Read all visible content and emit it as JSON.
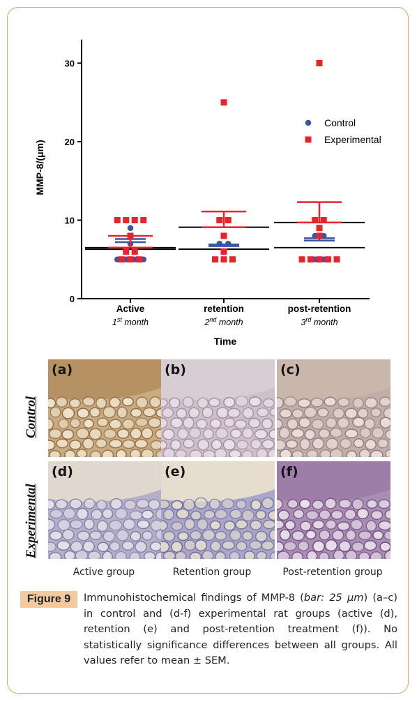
{
  "chart_data": {
    "type": "scatter",
    "ylabel": "MMP-8/(μm)",
    "xlabel": "Time",
    "ylim": [
      0,
      33
    ],
    "yticks": [
      0,
      10,
      20,
      30
    ],
    "categories": [
      {
        "name": "Active",
        "sub": "1",
        "sup": "st",
        "suffix": " month"
      },
      {
        "name": "retention",
        "sub": "2",
        "sup": "nd",
        "suffix": " month"
      },
      {
        "name": "post-retention",
        "sub": "3",
        "sup": "rd",
        "suffix": " month"
      }
    ],
    "legend_position": "right",
    "series": [
      {
        "name": "Control",
        "color": "#3a55a4",
        "marker": "circle",
        "points": [
          [
            0,
            5
          ],
          [
            0,
            5
          ],
          [
            0,
            5
          ],
          [
            0,
            5
          ],
          [
            0,
            7
          ],
          [
            0,
            9
          ],
          [
            1,
            5
          ],
          [
            1,
            6
          ],
          [
            1,
            7
          ],
          [
            1,
            7
          ],
          [
            2,
            5
          ],
          [
            2,
            5
          ],
          [
            2,
            8
          ],
          [
            2,
            8
          ]
        ],
        "mean": [
          7.2,
          6.7,
          7.4
        ],
        "sem_upper": [
          7.6,
          6.9,
          7.7
        ]
      },
      {
        "name": "Experimental",
        "color": "#e8232a",
        "marker": "square",
        "points": [
          [
            0,
            5
          ],
          [
            0,
            5
          ],
          [
            0,
            5
          ],
          [
            0,
            6
          ],
          [
            0,
            6
          ],
          [
            0,
            8
          ],
          [
            0,
            10
          ],
          [
            0,
            10
          ],
          [
            0,
            10
          ],
          [
            0,
            10
          ],
          [
            1,
            5
          ],
          [
            1,
            5
          ],
          [
            1,
            5
          ],
          [
            1,
            6
          ],
          [
            1,
            8
          ],
          [
            1,
            10
          ],
          [
            1,
            10
          ],
          [
            1,
            25
          ],
          [
            2,
            5
          ],
          [
            2,
            5
          ],
          [
            2,
            5
          ],
          [
            2,
            5
          ],
          [
            2,
            5
          ],
          [
            2,
            8
          ],
          [
            2,
            9
          ],
          [
            2,
            10
          ],
          [
            2,
            10
          ],
          [
            2,
            30
          ]
        ],
        "mean": [
          6.5,
          9.1,
          9.7
        ],
        "sem_upper": [
          8.0,
          11.1,
          12.3
        ]
      }
    ],
    "extra_lines": [
      6.3,
      6.3,
      6.5
    ]
  },
  "micrographs": {
    "row_labels": [
      "Control",
      "Experimental"
    ],
    "panels": [
      {
        "label": "(a)",
        "base": "#c9ab80",
        "cell": "#f3e7d0",
        "wall": "#8a6a48",
        "top": "#b28c5e"
      },
      {
        "label": "(b)",
        "base": "#cfbfc8",
        "cell": "#ece3ea",
        "wall": "#9d8ba0",
        "top": "#d8cfd3"
      },
      {
        "label": "(c)",
        "base": "#c2aea6",
        "cell": "#ece1dc",
        "wall": "#8f7c80",
        "top": "#cbb8ad"
      },
      {
        "label": "(d)",
        "base": "#b5b0c9",
        "cell": "#e7e3ee",
        "wall": "#7d7a9e",
        "top": "#e8dfcf"
      },
      {
        "label": "(e)",
        "base": "#a9a6c9",
        "cell": "#e5dfd0",
        "wall": "#6f6c9a",
        "top": "#f2e6cf"
      },
      {
        "label": "(f)",
        "base": "#a88eb0",
        "cell": "#efe6f0",
        "wall": "#6f4e80",
        "top": "#9d7aa8"
      }
    ],
    "group_labels": [
      "Active group",
      "Retention group",
      "Post-retention group"
    ]
  },
  "figure": {
    "badge": "Figure 9",
    "caption_parts": [
      {
        "t": "Immunohistochemical findings of MMP-8 (",
        "i": false
      },
      {
        "t": "bar: 25 μm",
        "i": true
      },
      {
        "t": ") (a–c) in control and (d-f) experimental rat groups (active (d), retention (e) and post-retention treatment (f)). No statistically significance differences between all groups. All values refer to mean ± SEM.",
        "i": false
      }
    ]
  },
  "colors": {
    "frame": "#e9a35a",
    "badge": "#f1caa2"
  }
}
